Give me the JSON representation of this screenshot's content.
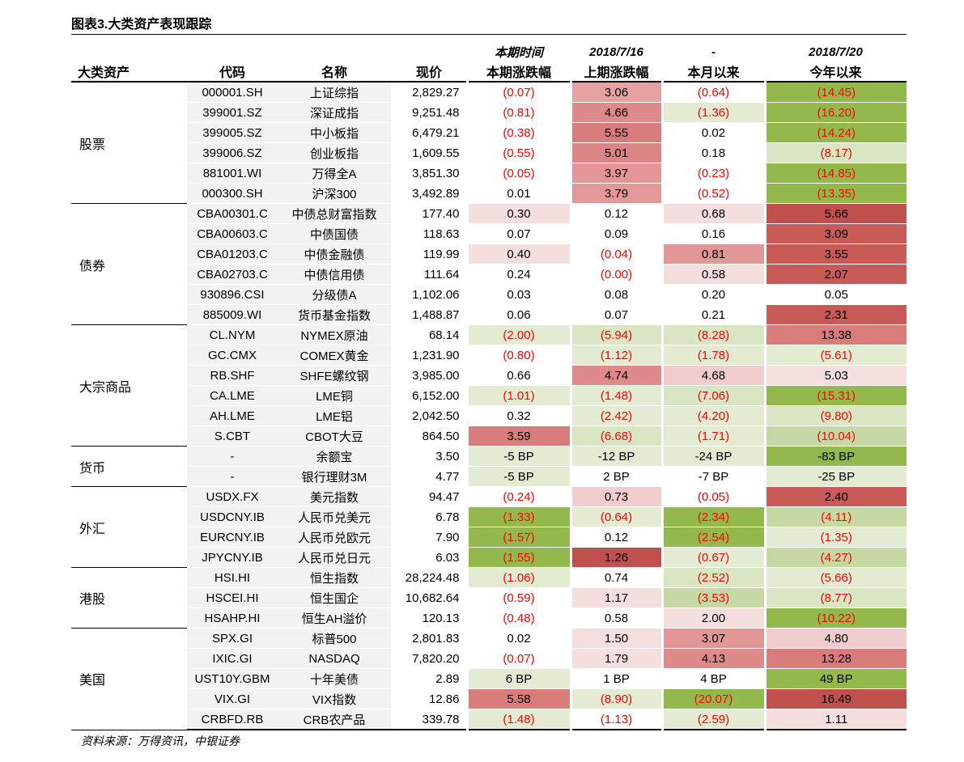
{
  "title": "图表3.大类资产表现跟踪",
  "date_header": [
    "",
    "",
    "",
    "",
    "本期时间",
    "2018/7/16",
    "-",
    "2018/7/20"
  ],
  "headers": [
    "大类资产",
    "代码",
    "名称",
    "现价",
    "本期涨跌幅",
    "上期涨跌幅",
    "本月以来",
    "今年以来"
  ],
  "groups": [
    {
      "name": "股票",
      "rows": [
        {
          "code": "000001.SH",
          "name": "上证综指",
          "price": "2,829.27",
          "values": [
            "(0.07)",
            "3.06",
            "(0.64)",
            "(14.45)"
          ],
          "colors": [
            "#ffffff",
            "#e6a1a1",
            "#ffffff",
            "#93b94c"
          ]
        },
        {
          "code": "399001.SZ",
          "name": "深证成指",
          "price": "9,251.48",
          "values": [
            "(0.81)",
            "4.66",
            "(1.36)",
            "(16.20)"
          ],
          "colors": [
            "#ffffff",
            "#de8a8a",
            "#e3ecd3",
            "#93b94c"
          ]
        },
        {
          "code": "399005.SZ",
          "name": "中小板指",
          "price": "6,479.21",
          "values": [
            "(0.38)",
            "5.55",
            "0.02",
            "(14.24)"
          ],
          "colors": [
            "#ffffff",
            "#d97c7c",
            "#ffffff",
            "#93b94c"
          ]
        },
        {
          "code": "399006.SZ",
          "name": "创业板指",
          "price": "1,609.55",
          "values": [
            "(0.55)",
            "5.01",
            "0.18",
            "(8.17)"
          ],
          "colors": [
            "#ffffff",
            "#dc8585",
            "#ffffff",
            "#d9e6c3"
          ]
        },
        {
          "code": "881001.WI",
          "name": "万得全A",
          "price": "3,851.30",
          "values": [
            "(0.05)",
            "3.97",
            "(0.23)",
            "(14.85)"
          ],
          "colors": [
            "#ffffff",
            "#e29696",
            "#ffffff",
            "#93b94c"
          ]
        },
        {
          "code": "000300.SH",
          "name": "沪深300",
          "price": "3,492.89",
          "values": [
            "0.01",
            "3.79",
            "(0.52)",
            "(13.35)"
          ],
          "colors": [
            "#ffffff",
            "#e39999",
            "#ffffff",
            "#93b94c"
          ]
        }
      ]
    },
    {
      "name": "债券",
      "rows": [
        {
          "code": "CBA00301.C",
          "name": "中债总财富指数",
          "price": "177.40",
          "values": [
            "0.30",
            "0.12",
            "0.68",
            "5.66"
          ],
          "colors": [
            "#f5dede",
            "#ffffff",
            "#f5dede",
            "#c0504d"
          ]
        },
        {
          "code": "CBA00603.C",
          "name": "中债国债",
          "price": "118.63",
          "values": [
            "0.07",
            "0.09",
            "0.16",
            "3.09"
          ],
          "colors": [
            "#ffffff",
            "#ffffff",
            "#ffffff",
            "#c85a57"
          ]
        },
        {
          "code": "CBA01203.C",
          "name": "中债金融债",
          "price": "119.99",
          "values": [
            "0.40",
            "(0.04)",
            "0.81",
            "3.55"
          ],
          "colors": [
            "#f5dede",
            "#ffffff",
            "#e29696",
            "#c85a57"
          ]
        },
        {
          "code": "CBA02703.C",
          "name": "中债信用债",
          "price": "111.64",
          "values": [
            "0.24",
            "(0.00)",
            "0.58",
            "2.07"
          ],
          "colors": [
            "#ffffff",
            "#ffffff",
            "#f5dede",
            "#c85a57"
          ]
        },
        {
          "code": "930896.CSI",
          "name": "分级债A",
          "price": "1,102.06",
          "values": [
            "0.03",
            "0.08",
            "0.20",
            "0.05"
          ],
          "colors": [
            "#ffffff",
            "#ffffff",
            "#ffffff",
            "#ffffff"
          ]
        },
        {
          "code": "885009.WI",
          "name": "货币基金指数",
          "price": "1,488.87",
          "values": [
            "0.06",
            "0.07",
            "0.21",
            "2.31"
          ],
          "colors": [
            "#ffffff",
            "#ffffff",
            "#ffffff",
            "#c85a57"
          ]
        }
      ]
    },
    {
      "name": "大宗商品",
      "rows": [
        {
          "code": "CL.NYM",
          "name": "NYMEX原油",
          "price": "68.14",
          "values": [
            "(2.00)",
            "(5.94)",
            "(8.28)",
            "13.38"
          ],
          "colors": [
            "#e3ecd3",
            "#d9e6c3",
            "#d9e6c3",
            "#d97c7c"
          ]
        },
        {
          "code": "GC.CMX",
          "name": "COMEX黄金",
          "price": "1,231.90",
          "values": [
            "(0.80)",
            "(1.12)",
            "(1.78)",
            "(5.61)"
          ],
          "colors": [
            "#ffffff",
            "#e3ecd3",
            "#e3ecd3",
            "#e3ecd3"
          ]
        },
        {
          "code": "RB.SHF",
          "name": "SHFE螺纹钢",
          "price": "3,985.00",
          "values": [
            "0.66",
            "4.74",
            "4.68",
            "5.03"
          ],
          "colors": [
            "#ffffff",
            "#de8a8a",
            "#f0cccc",
            "#f5dede"
          ]
        },
        {
          "code": "CA.LME",
          "name": "LME铜",
          "price": "6,152.00",
          "values": [
            "(1.01)",
            "(1.48)",
            "(7.06)",
            "(15.31)"
          ],
          "colors": [
            "#e3ecd3",
            "#e3ecd3",
            "#d9e6c3",
            "#93b94c"
          ]
        },
        {
          "code": "AH.LME",
          "name": "LME铝",
          "price": "2,042.50",
          "values": [
            "0.32",
            "(2.42)",
            "(4.20)",
            "(9.80)"
          ],
          "colors": [
            "#ffffff",
            "#e3ecd3",
            "#e3ecd3",
            "#d9e6c3"
          ]
        },
        {
          "code": "S.CBT",
          "name": "CBOT大豆",
          "price": "864.50",
          "values": [
            "3.59",
            "(6.68)",
            "(1.71)",
            "(10.04)"
          ],
          "colors": [
            "#d97c7c",
            "#d9e6c3",
            "#e3ecd3",
            "#c6d9a4"
          ]
        }
      ]
    },
    {
      "name": "货币",
      "rows": [
        {
          "code": "-",
          "name": "余额宝",
          "price": "3.50",
          "values": [
            "-5 BP",
            "-12 BP",
            "-24 BP",
            "-83 BP"
          ],
          "colors": [
            "#e3ecd3",
            "#e3ecd3",
            "#e3ecd3",
            "#93b94c"
          ]
        },
        {
          "code": "-",
          "name": "银行理财3M",
          "price": "4.77",
          "values": [
            "-5 BP",
            "2 BP",
            "-7 BP",
            "-25 BP"
          ],
          "colors": [
            "#e3ecd3",
            "#ffffff",
            "#ffffff",
            "#e3ecd3"
          ]
        }
      ]
    },
    {
      "name": "外汇",
      "rows": [
        {
          "code": "USDX.FX",
          "name": "美元指数",
          "price": "94.47",
          "values": [
            "(0.24)",
            "0.73",
            "(0.05)",
            "2.40"
          ],
          "colors": [
            "#ffffff",
            "#f0cccc",
            "#ffffff",
            "#c85a57"
          ]
        },
        {
          "code": "USDCNY.IB",
          "name": "人民币兑美元",
          "price": "6.78",
          "values": [
            "(1.33)",
            "(0.64)",
            "(2.34)",
            "(4.11)"
          ],
          "colors": [
            "#93b94c",
            "#e3ecd3",
            "#93b94c",
            "#c6d9a4"
          ]
        },
        {
          "code": "EURCNY.IB",
          "name": "人民币兑欧元",
          "price": "7.90",
          "values": [
            "(1.57)",
            "0.12",
            "(2.54)",
            "(1.35)"
          ],
          "colors": [
            "#93b94c",
            "#ffffff",
            "#93b94c",
            "#e3ecd3"
          ]
        },
        {
          "code": "JPYCNY.IB",
          "name": "人民币兑日元",
          "price": "6.03",
          "values": [
            "(1.55)",
            "1.26",
            "(0.67)",
            "(4.27)"
          ],
          "colors": [
            "#93b94c",
            "#c0504d",
            "#e3ecd3",
            "#c6d9a4"
          ]
        }
      ]
    },
    {
      "name": "港股",
      "rows": [
        {
          "code": "HSI.HI",
          "name": "恒生指数",
          "price": "28,224.48",
          "values": [
            "(1.06)",
            "0.74",
            "(2.52)",
            "(5.66)"
          ],
          "colors": [
            "#e3ecd3",
            "#ffffff",
            "#d9e6c3",
            "#e3ecd3"
          ]
        },
        {
          "code": "HSCEI.HI",
          "name": "恒生国企",
          "price": "10,682.64",
          "values": [
            "(0.59)",
            "1.17",
            "(3.53)",
            "(8.77)"
          ],
          "colors": [
            "#ffffff",
            "#f5dede",
            "#c6d9a4",
            "#d9e6c3"
          ]
        },
        {
          "code": "HSAHP.HI",
          "name": "恒生AH溢价",
          "price": "120.13",
          "values": [
            "(0.48)",
            "0.58",
            "2.00",
            "(10.22)"
          ],
          "colors": [
            "#ffffff",
            "#ffffff",
            "#f5dede",
            "#93b94c"
          ]
        }
      ]
    },
    {
      "name": "美国",
      "rows": [
        {
          "code": "SPX.GI",
          "name": "标普500",
          "price": "2,801.83",
          "values": [
            "0.02",
            "1.50",
            "3.07",
            "4.80"
          ],
          "colors": [
            "#ffffff",
            "#f5dede",
            "#e29696",
            "#f0cccc"
          ]
        },
        {
          "code": "IXIC.GI",
          "name": "NASDAQ",
          "price": "7,820.20",
          "values": [
            "(0.07)",
            "1.79",
            "4.13",
            "13.28"
          ],
          "colors": [
            "#ffffff",
            "#f5dede",
            "#de8a8a",
            "#d97c7c"
          ]
        },
        {
          "code": "UST10Y.GBM",
          "name": "十年美债",
          "price": "2.89",
          "values": [
            "6 BP",
            "1 BP",
            "4 BP",
            "49 BP"
          ],
          "colors": [
            "#e3ecd3",
            "#ffffff",
            "#ffffff",
            "#93b94c"
          ]
        },
        {
          "code": "VIX.GI",
          "name": "VIX指数",
          "price": "12.86",
          "values": [
            "5.58",
            "(8.90)",
            "(20.07)",
            "16.49"
          ],
          "colors": [
            "#d97c7c",
            "#e3ecd3",
            "#93b94c",
            "#c0504d"
          ]
        },
        {
          "code": "CRBFD.RB",
          "name": "CRB农产品",
          "price": "339.78",
          "values": [
            "(1.48)",
            "(1.13)",
            "(2.59)",
            "1.11"
          ],
          "colors": [
            "#e3ecd3",
            "#ffffff",
            "#e3ecd3",
            "#f5dede"
          ]
        }
      ]
    }
  ],
  "source": "资料来源：万得资讯，中银证券"
}
